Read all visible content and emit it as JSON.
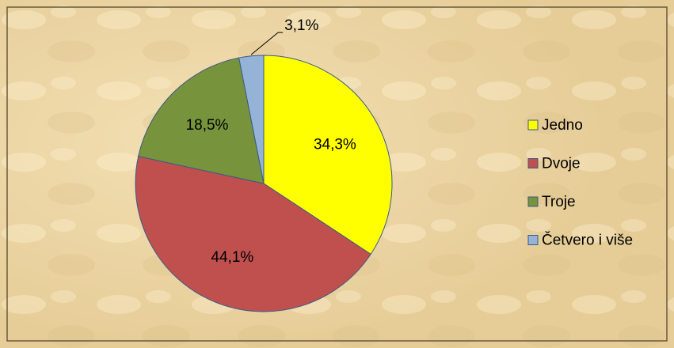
{
  "chart_data": {
    "type": "pie",
    "categories": [
      "Jedno",
      "Dvoje",
      "Troje",
      "Četvero i više"
    ],
    "values": [
      34.3,
      44.1,
      18.5,
      3.1
    ],
    "value_labels": [
      "34,3%",
      "44,1%",
      "18,5%",
      "3,1%"
    ],
    "colors": [
      "#ffff00",
      "#c0504d",
      "#77933c",
      "#95b3d7"
    ],
    "legend": "right"
  }
}
